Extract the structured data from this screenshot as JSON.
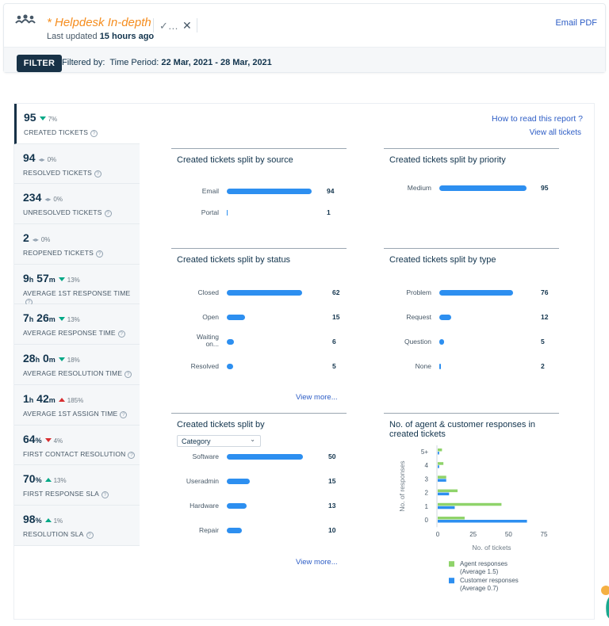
{
  "header": {
    "title": "* Helpdesk In-depth",
    "last_updated_prefix": "Last updated",
    "last_updated_value": "15 hours ago",
    "email_pdf": "Email PDF",
    "filter_button": "FILTER",
    "filter_prefix": "Filtered by:",
    "filter_field": "Time Period:",
    "filter_value": "22 Mar, 2021 - 28 Mar, 2021"
  },
  "links": {
    "how_to_read": "How to read this report ?",
    "view_all": "View all tickets",
    "view_more": "View more..."
  },
  "metrics": [
    {
      "value": "95",
      "trend": "down-green",
      "change": "7%",
      "label": "CREATED TICKETS"
    },
    {
      "value": "94",
      "trend": "flat",
      "change": "0%",
      "label": "RESOLVED TICKETS"
    },
    {
      "value": "234",
      "trend": "flat",
      "change": "0%",
      "label": "UNRESOLVED TICKETS"
    },
    {
      "value": "2",
      "trend": "flat",
      "change": "0%",
      "label": "REOPENED TICKETS"
    },
    {
      "value_parts": [
        "9",
        "h",
        " 57",
        "m"
      ],
      "trend": "down-green",
      "change": "13%",
      "label": "AVERAGE 1ST RESPONSE TIME"
    },
    {
      "value_parts": [
        "7",
        "h",
        " 26",
        "m"
      ],
      "trend": "down-green",
      "change": "13%",
      "label": "AVERAGE RESPONSE TIME"
    },
    {
      "value_parts": [
        "28",
        "h",
        " 0",
        "m"
      ],
      "trend": "down-green",
      "change": "18%",
      "label": "AVERAGE RESOLUTION TIME"
    },
    {
      "value_parts": [
        "1",
        "h",
        " 42",
        "m"
      ],
      "trend": "up-red",
      "change": "185%",
      "label": "AVERAGE 1ST ASSIGN TIME"
    },
    {
      "value_parts": [
        "64",
        "%"
      ],
      "trend": "down-red",
      "change": "4%",
      "label": "FIRST CONTACT RESOLUTION"
    },
    {
      "value_parts": [
        "70",
        "%"
      ],
      "trend": "up-green",
      "change": "13%",
      "label": "FIRST RESPONSE SLA"
    },
    {
      "value_parts": [
        "98",
        "%"
      ],
      "trend": "up-green",
      "change": "1%",
      "label": "RESOLUTION SLA"
    }
  ],
  "cards": {
    "source": {
      "title": "Created tickets split by source"
    },
    "priority": {
      "title": "Created tickets split by priority"
    },
    "status": {
      "title": "Created tickets split by status"
    },
    "type": {
      "title": "Created tickets split by type"
    },
    "category": {
      "title": "Created tickets split by",
      "select_value": "Category"
    },
    "responses": {
      "title_line1": "No. of agent & customer responses in",
      "title_line2": "created tickets"
    }
  },
  "chart_data": [
    {
      "type": "bar",
      "title": "Created tickets split by source",
      "categories": [
        "Email",
        "Portal"
      ],
      "values": [
        94,
        1
      ]
    },
    {
      "type": "bar",
      "title": "Created tickets split by priority",
      "categories": [
        "Medium"
      ],
      "values": [
        95
      ]
    },
    {
      "type": "bar",
      "title": "Created tickets split by status",
      "categories": [
        "Closed",
        "Open",
        "Waiting on...",
        "Resolved"
      ],
      "values": [
        62,
        15,
        6,
        5
      ]
    },
    {
      "type": "bar",
      "title": "Created tickets split by type",
      "categories": [
        "Problem",
        "Request",
        "Question",
        "None"
      ],
      "values": [
        76,
        12,
        5,
        2
      ]
    },
    {
      "type": "bar",
      "title": "Created tickets split by Category",
      "categories": [
        "Software",
        "Useradmin",
        "Hardware",
        "Repair"
      ],
      "values": [
        50,
        15,
        13,
        10
      ]
    },
    {
      "type": "bar",
      "title": "No. of agent & customer responses in created tickets",
      "xlabel": "No. of tickets",
      "ylabel": "No. of responses",
      "categories": [
        "5+",
        "4",
        "3",
        "2",
        "1",
        "0"
      ],
      "xticks": [
        "0",
        "25",
        "50",
        "75"
      ],
      "xlim": [
        0,
        75
      ],
      "series": [
        {
          "name": "Agent responses",
          "note": "(Average 1.5)",
          "color": "#8fd36a",
          "values": [
            3,
            4,
            6,
            14,
            45,
            19
          ]
        },
        {
          "name": "Customer responses",
          "note": "(Average 0.7)",
          "color": "#2d8ff0",
          "values": [
            1,
            1,
            6,
            8,
            12,
            63
          ]
        }
      ]
    }
  ],
  "colors": {
    "bar": "#2d8ff0",
    "accent": "#f58d1f",
    "dark": "#183247",
    "link": "#2c5cc5"
  }
}
